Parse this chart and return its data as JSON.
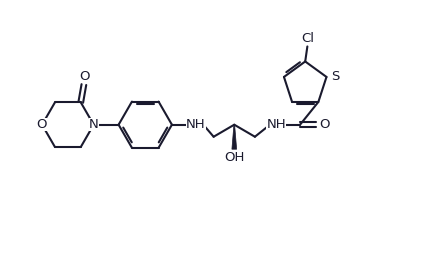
{
  "background_color": "#ffffff",
  "line_color": "#1a1a2e",
  "line_width": 1.5,
  "font_size": 9.5,
  "xlim": [
    0,
    10
  ],
  "ylim": [
    0,
    6
  ]
}
